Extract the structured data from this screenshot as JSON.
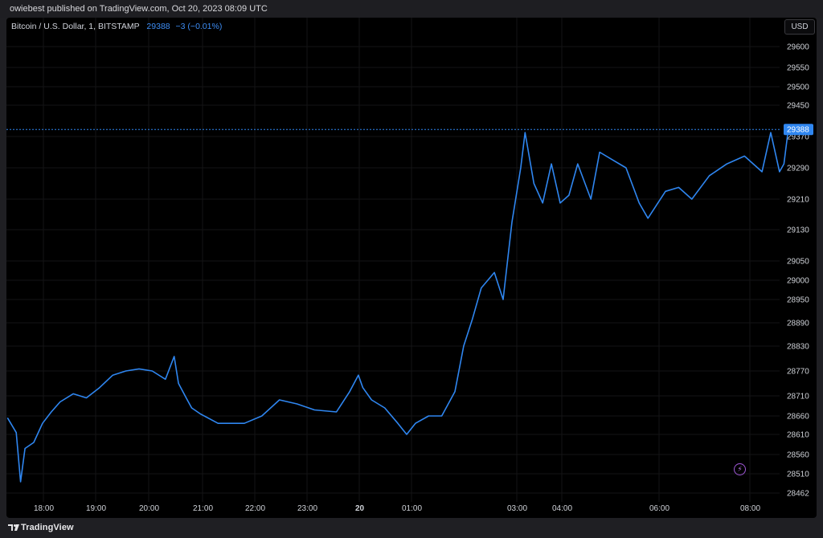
{
  "header": {
    "publish_text": "owiebest published on TradingView.com, Oct 20, 2023 08:09 UTC"
  },
  "legend": {
    "symbol": "Bitcoin / U.S. Dollar, 1, BITSTAMP",
    "price": "29388",
    "change": "−3 (−0.01%)"
  },
  "currency_button": "USD",
  "last_price_label": "29388",
  "footer": {
    "brand": "TradingView"
  },
  "colors": {
    "line": "#2f86f0",
    "background": "#000000",
    "price_tag": "#2f86f0"
  },
  "icons": {
    "alert": "lightning-bolt-icon",
    "logo": "tradingview-logo-icon"
  },
  "chart_data": {
    "type": "line",
    "title": "Bitcoin / U.S. Dollar, 1, BITSTAMP",
    "xlabel": "",
    "ylabel": "",
    "last_value": 29388,
    "y_ticks": [
      29600,
      29550,
      29500,
      29450,
      29370,
      29290,
      29210,
      29130,
      29050,
      29000,
      28950,
      28890,
      28830,
      28770,
      28710,
      28660,
      28610,
      28560,
      28510,
      28462
    ],
    "x_ticks": [
      "18:00",
      "19:00",
      "20:00",
      "21:00",
      "22:00",
      "23:00",
      "20",
      "01:00",
      "03:00",
      "04:00",
      "06:00",
      "08:00"
    ],
    "series": [
      {
        "x": [
          "17:30",
          "17:40",
          "17:45",
          "17:50",
          "18:00",
          "18:10",
          "18:20",
          "18:30",
          "18:45",
          "19:00",
          "19:15",
          "19:30",
          "19:45",
          "20:00",
          "20:15",
          "20:30",
          "20:40",
          "20:45",
          "20:55",
          "21:00",
          "21:10",
          "21:30",
          "22:00",
          "22:20",
          "22:40",
          "23:00",
          "23:20",
          "23:45",
          "00:00",
          "00:10",
          "00:15",
          "00:25",
          "00:40",
          "00:55",
          "01:05",
          "01:15",
          "01:30",
          "01:45",
          "02:00",
          "02:10",
          "02:20",
          "02:30",
          "02:45",
          "02:55",
          "03:05",
          "03:15",
          "03:20",
          "03:30",
          "03:40",
          "03:50",
          "04:00",
          "04:10",
          "04:20",
          "04:35",
          "04:45",
          "05:00",
          "05:15",
          "05:30",
          "05:40",
          "06:00",
          "06:15",
          "06:30",
          "06:50",
          "07:10",
          "07:30",
          "07:50",
          "08:00",
          "08:10",
          "08:15",
          "08:20"
        ],
        "y": [
          28655,
          28615,
          28490,
          28575,
          28590,
          28640,
          28670,
          28695,
          28715,
          28705,
          28730,
          28760,
          28770,
          28775,
          28770,
          28750,
          28805,
          28740,
          28700,
          28680,
          28665,
          28640,
          28640,
          28660,
          28700,
          28690,
          28675,
          28670,
          28720,
          28760,
          28730,
          28700,
          28680,
          28640,
          28610,
          28640,
          28660,
          28660,
          28720,
          28830,
          28900,
          28980,
          29020,
          28950,
          29150,
          29290,
          29380,
          29250,
          29200,
          29300,
          29200,
          29220,
          29300,
          29210,
          29330,
          29310,
          29290,
          29200,
          29160,
          29230,
          29240,
          29210,
          29270,
          29300,
          29320,
          29280,
          29380,
          29280,
          29300,
          29388
        ]
      }
    ],
    "grid": true,
    "legend_position": "top-left"
  }
}
